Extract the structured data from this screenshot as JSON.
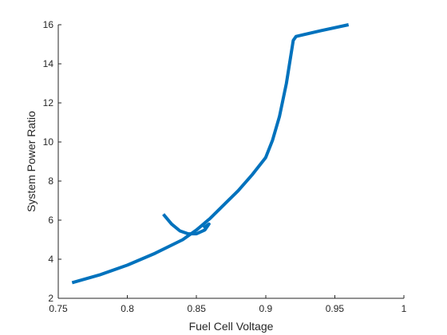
{
  "chart_data": {
    "type": "line",
    "title": "",
    "xlabel": "Fuel Cell Voltage",
    "ylabel": "System Power Ratio",
    "xlim": [
      0.75,
      1
    ],
    "ylim": [
      2,
      16
    ],
    "x_ticks": [
      0.75,
      0.8,
      0.85,
      0.9,
      0.95,
      1
    ],
    "x_tick_labels": [
      "0.75",
      "0.8",
      "0.85",
      "0.9",
      "0.95",
      "1"
    ],
    "y_ticks": [
      2,
      4,
      6,
      8,
      10,
      12,
      14,
      16
    ],
    "y_tick_labels": [
      "2",
      "4",
      "6",
      "8",
      "10",
      "12",
      "14",
      "16"
    ],
    "grid": false,
    "colors": {
      "series": "#0072BD",
      "axis": "#262626"
    },
    "series": [
      {
        "x": [
          0.76,
          0.78,
          0.8,
          0.82,
          0.84,
          0.85,
          0.86,
          0.87,
          0.88,
          0.89,
          0.9,
          0.905,
          0.91,
          0.915,
          0.92,
          0.922,
          0.94,
          0.96
        ],
        "y": [
          2.8,
          3.2,
          3.7,
          4.3,
          5.0,
          5.5,
          6.1,
          6.8,
          7.5,
          8.3,
          9.2,
          10.1,
          11.3,
          13.0,
          15.2,
          15.4,
          15.7,
          16.0
        ]
      },
      {
        "x": [
          0.826,
          0.832,
          0.838,
          0.844,
          0.85,
          0.856,
          0.859,
          0.855
        ],
        "y": [
          6.3,
          5.8,
          5.45,
          5.3,
          5.3,
          5.5,
          5.8,
          5.6
        ]
      }
    ]
  }
}
